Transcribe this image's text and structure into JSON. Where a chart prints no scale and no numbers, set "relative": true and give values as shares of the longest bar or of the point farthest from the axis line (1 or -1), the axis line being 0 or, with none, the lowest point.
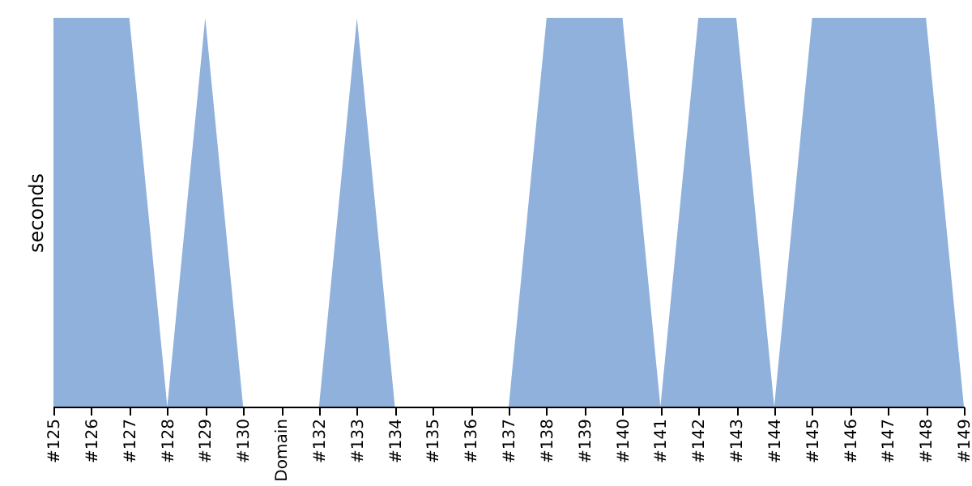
{
  "chart_data": {
    "type": "area",
    "ylabel": "seconds",
    "relative": true,
    "color": "#8fb1db",
    "grid": false,
    "categories": [
      "#125",
      "#126",
      "#127",
      "#128",
      "#129",
      "#130",
      "Domain",
      "#132",
      "#133",
      "#134",
      "#135",
      "#136",
      "#137",
      "#138",
      "#139",
      "#140",
      "#141",
      "#142",
      "#143",
      "#144",
      "#145",
      "#146",
      "#147",
      "#148",
      "#149"
    ],
    "values": [
      1,
      1,
      1,
      0,
      1,
      0,
      0,
      0,
      1,
      0,
      0,
      0,
      0,
      1,
      1,
      1,
      0,
      1,
      1,
      0,
      1,
      1,
      1,
      1,
      0
    ]
  }
}
